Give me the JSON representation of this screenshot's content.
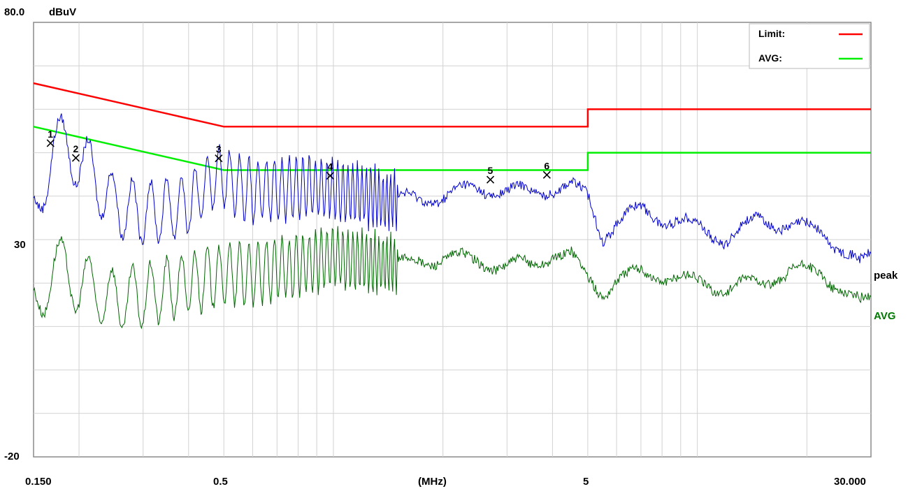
{
  "chart_data": {
    "type": "line",
    "xscale": "log",
    "xlim": [
      0.15,
      30
    ],
    "ylim": [
      -20,
      80
    ],
    "y_unit": "dBuV",
    "x_unit": "(MHz)",
    "y_ticks": [
      {
        "value": 80,
        "label": "80.0"
      },
      {
        "value": 30,
        "label": "30"
      },
      {
        "value": -20,
        "label": "-20"
      }
    ],
    "x_ticks": [
      {
        "value": 0.15,
        "label": "0.150"
      },
      {
        "value": 0.5,
        "label": "0.5"
      },
      {
        "value": 5,
        "label": "5"
      },
      {
        "value": 30,
        "label": "30.000"
      }
    ],
    "grid": true,
    "legend": {
      "placement": "top-right",
      "entries": [
        {
          "label": "Limit:",
          "color": "#ff0000"
        },
        {
          "label": "AVG:",
          "color": "#00ee00"
        }
      ]
    },
    "series": [
      {
        "name": "Limit",
        "color": "#ff0000",
        "x": [
          0.15,
          0.5,
          0.5,
          5,
          5,
          30
        ],
        "y": [
          66,
          56,
          56,
          56,
          60,
          60
        ]
      },
      {
        "name": "AVG",
        "color": "#00ee00",
        "x": [
          0.15,
          0.5,
          0.5,
          5,
          5,
          30
        ],
        "y": [
          56,
          46,
          46,
          46,
          50,
          50
        ]
      },
      {
        "name": "peak",
        "color": "#0000cc",
        "x": [
          0.15,
          0.17,
          0.2,
          0.25,
          0.3,
          0.4,
          0.48,
          0.6,
          0.8,
          1.0,
          1.2,
          1.5,
          2.0,
          2.5,
          3.0,
          3.5,
          4.0,
          4.5,
          5.0,
          5.5,
          6.0,
          7.0,
          8.0,
          10.0,
          12.0,
          15.0,
          18.0,
          22.0,
          25.0,
          28.0,
          30.0
        ],
        "y": [
          36,
          52,
          49,
          38,
          36,
          38,
          45,
          41,
          42,
          42,
          40,
          39,
          40,
          42,
          41,
          41,
          42,
          42,
          40,
          31,
          34,
          37,
          35,
          33,
          30,
          35,
          33,
          32,
          28,
          24,
          26
        ]
      },
      {
        "name": "AVG",
        "color": "#006600",
        "x": [
          0.15,
          0.17,
          0.2,
          0.25,
          0.3,
          0.4,
          0.5,
          0.6,
          0.8,
          1.0,
          1.2,
          1.5,
          2.0,
          2.5,
          3.0,
          3.5,
          4.0,
          4.5,
          5.0,
          5.5,
          6.0,
          7.0,
          8.0,
          10.0,
          12.0,
          15.0,
          18.0,
          22.0,
          25.0,
          28.0,
          30.0
        ],
        "y": [
          15,
          24,
          20,
          16,
          17,
          20,
          22,
          22,
          24,
          26,
          25,
          24,
          26,
          25,
          24,
          24,
          27,
          26,
          21,
          18,
          21,
          22,
          22,
          20,
          19,
          20,
          23,
          22,
          19,
          15,
          16
        ]
      }
    ],
    "markers": [
      {
        "label": "1",
        "x": 0.167,
        "y": 52.2
      },
      {
        "label": "2",
        "x": 0.196,
        "y": 48.8
      },
      {
        "label": "3",
        "x": 0.484,
        "y": 48.7
      },
      {
        "label": "4",
        "x": 0.98,
        "y": 44.7
      },
      {
        "label": "5",
        "x": 2.7,
        "y": 43.8
      },
      {
        "label": "6",
        "x": 3.86,
        "y": 44.9
      }
    ]
  }
}
